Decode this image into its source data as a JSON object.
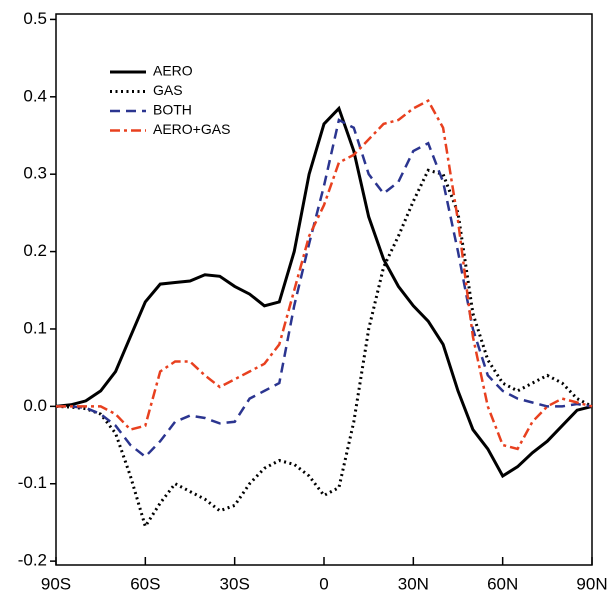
{
  "chart_data": {
    "type": "line",
    "x": [
      -90,
      -85,
      -80,
      -75,
      -70,
      -65,
      -60,
      -55,
      -50,
      -45,
      -40,
      -35,
      -30,
      -25,
      -20,
      -15,
      -10,
      -5,
      0,
      5,
      10,
      15,
      20,
      25,
      30,
      35,
      40,
      45,
      50,
      55,
      60,
      65,
      70,
      75,
      80,
      85,
      90
    ],
    "series": [
      {
        "name": "AERO",
        "color": "#000000",
        "values": [
          0,
          0.002,
          0.007,
          0.02,
          0.045,
          0.09,
          0.135,
          0.158,
          0.16,
          0.162,
          0.17,
          0.168,
          0.155,
          0.145,
          0.13,
          0.135,
          0.2,
          0.3,
          0.365,
          0.385,
          0.33,
          0.245,
          0.19,
          0.155,
          0.13,
          0.11,
          0.08,
          0.02,
          -0.03,
          -0.055,
          -0.09,
          -0.078,
          -0.06,
          -0.045,
          -0.025,
          -0.005,
          0
        ]
      },
      {
        "name": "GAS",
        "color": "#000000",
        "values": [
          0,
          -0.001,
          -0.003,
          -0.01,
          -0.035,
          -0.09,
          -0.155,
          -0.125,
          -0.1,
          -0.11,
          -0.12,
          -0.135,
          -0.128,
          -0.1,
          -0.08,
          -0.07,
          -0.075,
          -0.09,
          -0.115,
          -0.105,
          -0.02,
          0.1,
          0.18,
          0.22,
          0.265,
          0.305,
          0.3,
          0.25,
          0.12,
          0.06,
          0.03,
          0.02,
          0.03,
          0.04,
          0.03,
          0.01,
          0
        ]
      },
      {
        "name": "BOTH",
        "color": "#2b3590",
        "values": [
          0,
          0,
          -0.002,
          -0.01,
          -0.025,
          -0.05,
          -0.065,
          -0.045,
          -0.02,
          -0.012,
          -0.015,
          -0.022,
          -0.02,
          0.01,
          0.02,
          0.03,
          0.13,
          0.21,
          0.285,
          0.37,
          0.36,
          0.3,
          0.275,
          0.29,
          0.33,
          0.34,
          0.29,
          0.2,
          0.1,
          0.04,
          0.02,
          0.01,
          0.005,
          0,
          0,
          0.003,
          0
        ]
      },
      {
        "name": "AERO+GAS",
        "color": "#e8401f",
        "values": [
          0,
          0,
          0,
          0,
          -0.01,
          -0.03,
          -0.025,
          0.045,
          0.058,
          0.058,
          0.04,
          0.025,
          0.035,
          0.045,
          0.055,
          0.08,
          0.15,
          0.22,
          0.26,
          0.315,
          0.325,
          0.345,
          0.365,
          0.37,
          0.385,
          0.395,
          0.36,
          0.24,
          0.09,
          0,
          -0.05,
          -0.055,
          -0.02,
          0,
          0.01,
          0.005,
          0
        ]
      }
    ],
    "xlim": [
      -90,
      90
    ],
    "xticks": [
      {
        "value": -90,
        "label": "90S"
      },
      {
        "value": -60,
        "label": "60S"
      },
      {
        "value": -30,
        "label": "30S"
      },
      0,
      {
        "value": 30,
        "label": "30N"
      },
      {
        "value": 60,
        "label": "60N"
      },
      {
        "value": 90,
        "label": "90N"
      }
    ],
    "ylim": [
      -0.205,
      0.507
    ],
    "yticks": [
      -0.2,
      -0.1,
      {
        "value": 0,
        "label": "0.0"
      },
      0.1,
      0.2,
      0.3,
      0.4,
      0.5
    ]
  }
}
